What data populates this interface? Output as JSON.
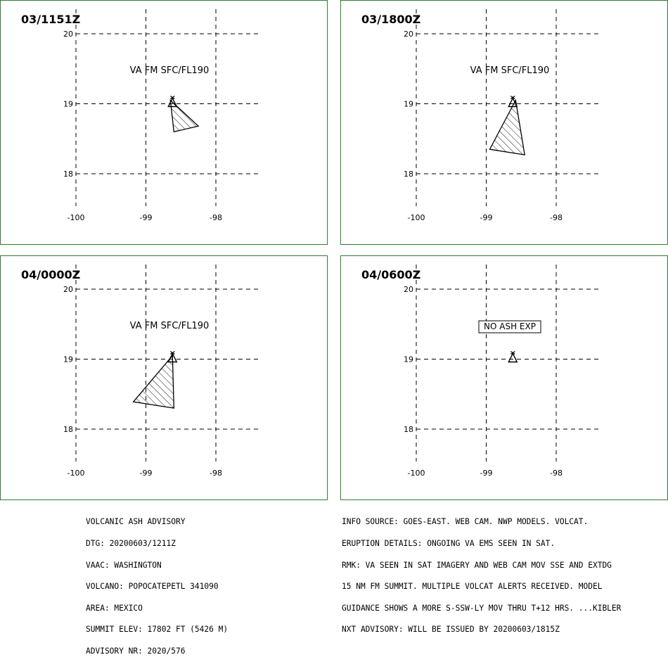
{
  "panels": [
    {
      "id": "p1",
      "title": "03/1151Z",
      "label": "VA FM SFC/FL190",
      "boxed": false,
      "polygon": [
        [
          -98.65,
          19.05
        ],
        [
          -98.6,
          18.6
        ],
        [
          -98.25,
          18.68
        ]
      ]
    },
    {
      "id": "p2",
      "title": "03/1800Z",
      "label": "VA FM SFC/FL190",
      "boxed": false,
      "polygon": [
        [
          -98.58,
          19.05
        ],
        [
          -98.95,
          18.35
        ],
        [
          -98.45,
          18.27
        ]
      ]
    },
    {
      "id": "p3",
      "title": "04/0000Z",
      "label": "VA FM SFC/FL190",
      "boxed": false,
      "polygon": [
        [
          -98.62,
          19.05
        ],
        [
          -99.18,
          18.39
        ],
        [
          -98.6,
          18.3
        ]
      ]
    },
    {
      "id": "p4",
      "title": "04/0600Z",
      "label": "NO ASH EXP",
      "boxed": true,
      "polygon": []
    }
  ],
  "grid": {
    "lon_ticks": [
      -100,
      -99,
      -98
    ],
    "lon_labels": [
      "-100",
      "-99",
      "-98"
    ],
    "lat_ticks": [
      20,
      19,
      18
    ],
    "lat_labels": [
      "20",
      "19",
      "18"
    ]
  },
  "volcano": {
    "name": "POPOCATEPETL",
    "lon": -98.62,
    "lat": 19.02,
    "icon": "volcano-triangle-icon"
  },
  "colors": {
    "frame": "#2e7d2e",
    "line": "#000000"
  },
  "footer_left": [
    "VOLCANIC ASH ADVISORY",
    "DTG: 20200603/1211Z",
    "VAAC: WASHINGTON",
    "VOLCANO: POPOCATEPETL 341090",
    "AREA: MEXICO",
    "SUMMIT ELEV: 17802 FT (5426 M)",
    "ADVISORY NR: 2020/576"
  ],
  "footer_right": [
    "INFO SOURCE: GOES-EAST. WEB CAM. NWP MODELS. VOLCAT.",
    "ERUPTION DETAILS: ONGOING VA EMS SEEN IN SAT.",
    "RMK: VA SEEN IN SAT IMAGERY AND WEB CAM MOV SSE AND EXTDG",
    "15 NM FM SUMMIT. MULTIPLE VOLCAT ALERTS RECEIVED. MODEL",
    "GUIDANCE SHOWS A MORE S-SSW-LY MOV THRU T+12 HRS. ...KIBLER",
    "NXT ADVISORY: WILL BE ISSUED BY 20200603/1815Z"
  ]
}
